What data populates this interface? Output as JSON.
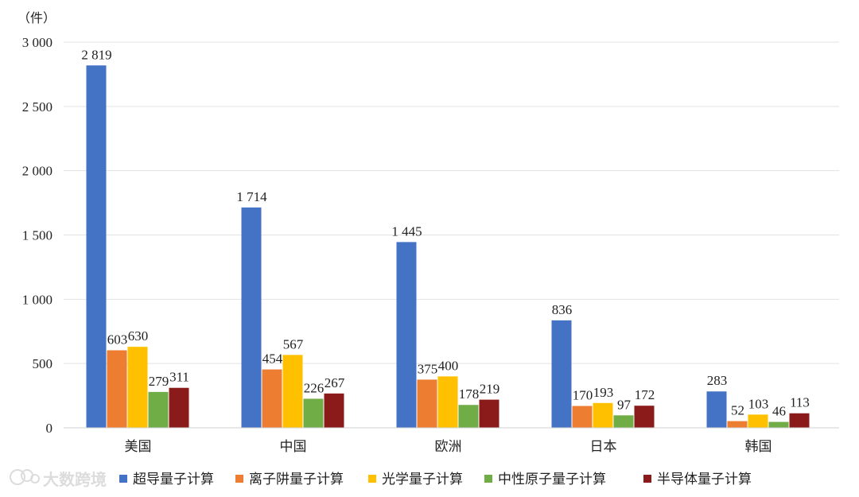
{
  "chart_data": {
    "type": "bar",
    "unit_label": "（件）",
    "categories": [
      "美国",
      "中国",
      "欧洲",
      "日本",
      "韩国"
    ],
    "series": [
      {
        "name": "超导量子计算",
        "color": "#4472C4",
        "values": [
          2819,
          1714,
          1445,
          836,
          283
        ],
        "labels": [
          "2 819",
          "1 714",
          "1 445",
          "836",
          "283"
        ]
      },
      {
        "name": "离子阱量子计算",
        "color": "#ED7D31",
        "values": [
          603,
          454,
          375,
          170,
          52
        ],
        "labels": [
          "603",
          "454",
          "375",
          "170",
          "52"
        ]
      },
      {
        "name": "光学量子计算",
        "color": "#FFC000",
        "values": [
          630,
          567,
          400,
          193,
          103
        ],
        "labels": [
          "630",
          "567",
          "400",
          "193",
          "103"
        ]
      },
      {
        "name": "中性原子量子计算",
        "color": "#70AD47",
        "values": [
          279,
          226,
          178,
          97,
          46
        ],
        "labels": [
          "279",
          "226",
          "178",
          "97",
          "46"
        ]
      },
      {
        "name": "半导体量子计算",
        "color": "#8B1A1A",
        "values": [
          311,
          267,
          219,
          172,
          113
        ],
        "labels": [
          "311",
          "267",
          "219",
          "172",
          "113"
        ]
      }
    ],
    "ylim": [
      0,
      3000
    ],
    "yticks": [
      0,
      500,
      1000,
      1500,
      2000,
      2500,
      3000
    ],
    "ytick_labels": [
      "0",
      "500",
      "1 000",
      "1 500",
      "2 000",
      "2 500",
      "3 000"
    ],
    "grid": true,
    "legend_position": "bottom"
  },
  "watermark": "大数跨境"
}
